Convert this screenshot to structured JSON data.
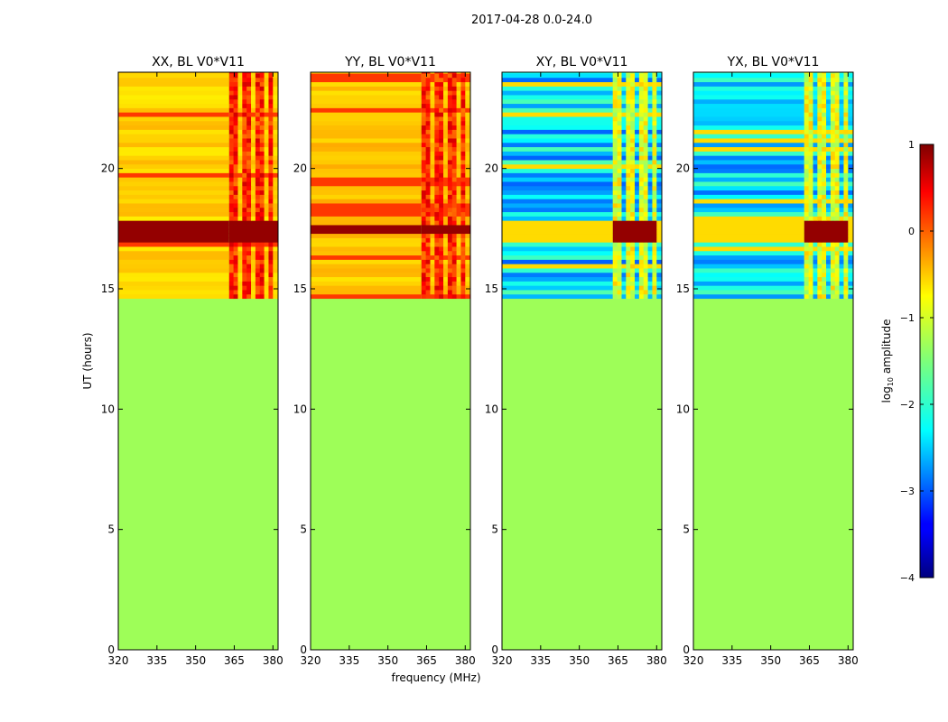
{
  "figure_title": "2017-04-28 0.0-24.0",
  "xlabel": "frequency (MHz)",
  "ylabel": "UT (hours)",
  "colorbar_label": "log10 amplitude",
  "colorbar_label_base": "log",
  "colorbar_label_sub": "10",
  "colorbar_label_rest": " amplitude",
  "colorbar": {
    "range": [
      -4,
      1
    ],
    "ticks": [
      {
        "v": 1,
        "label": "1"
      },
      {
        "v": 0,
        "label": "0"
      },
      {
        "v": -1,
        "label": "−1"
      },
      {
        "v": -2,
        "label": "−2"
      },
      {
        "v": -3,
        "label": "−3"
      },
      {
        "v": -4,
        "label": "−4"
      }
    ]
  },
  "colors": {
    "background_fill": "#9efe58"
  },
  "chart_data": [
    {
      "type": "heatmap",
      "title": "XX, BL V0*V11",
      "xlim": [
        320,
        382
      ],
      "ylim": [
        0,
        24
      ],
      "xticks": [
        320,
        335,
        350,
        365,
        380
      ],
      "yticks": [
        0,
        5,
        10,
        15,
        20
      ],
      "data_start_hour": 14.6,
      "baseline_log_amplitude": -0.65,
      "rfi_band_mhz": [
        363,
        380
      ],
      "strong_band_hours": [
        16.8,
        17.8
      ],
      "strong_band_log_amplitude": 0.9
    },
    {
      "type": "heatmap",
      "title": "YY, BL V0*V11",
      "xlim": [
        320,
        382
      ],
      "ylim": [
        0,
        24
      ],
      "xticks": [
        320,
        335,
        350,
        365,
        380
      ],
      "yticks": [
        0,
        5,
        10,
        15,
        20
      ],
      "data_start_hour": 14.6,
      "baseline_log_amplitude": -0.6,
      "rfi_band_mhz": [
        363,
        380
      ],
      "strong_band_hours": [
        17.2,
        17.6
      ],
      "strong_band_log_amplitude": 0.9
    },
    {
      "type": "heatmap",
      "title": "XY, BL V0*V11",
      "xlim": [
        320,
        382
      ],
      "ylim": [
        0,
        24
      ],
      "xticks": [
        320,
        335,
        350,
        365,
        380
      ],
      "yticks": [
        0,
        5,
        10,
        15,
        20
      ],
      "data_start_hour": 14.6,
      "baseline_log_amplitude": -2.3,
      "rfi_band_mhz": [
        363,
        380
      ],
      "strong_band_hours": [
        16.8,
        17.8
      ],
      "strong_band_log_amplitude": 0.9
    },
    {
      "type": "heatmap",
      "title": "YX, BL V0*V11",
      "xlim": [
        320,
        382
      ],
      "ylim": [
        0,
        24
      ],
      "xticks": [
        320,
        335,
        350,
        365,
        380
      ],
      "yticks": [
        0,
        5,
        10,
        15,
        20
      ],
      "data_start_hour": 14.6,
      "baseline_log_amplitude": -2.3,
      "rfi_band_mhz": [
        363,
        380
      ],
      "strong_band_hours": [
        16.8,
        17.8
      ],
      "strong_band_log_amplitude": 0.9
    }
  ]
}
